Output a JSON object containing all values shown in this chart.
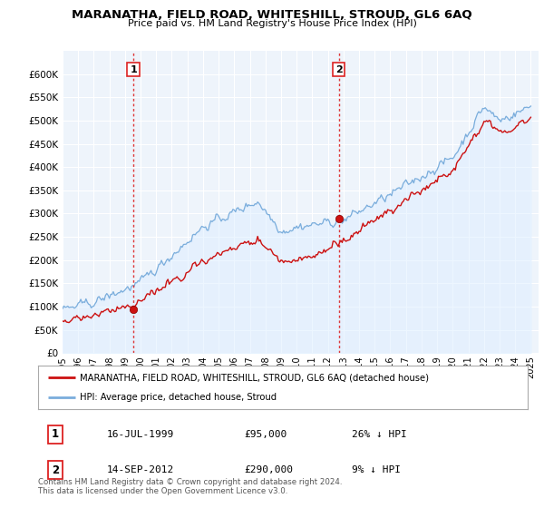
{
  "title": "MARANATHA, FIELD ROAD, WHITESHILL, STROUD, GL6 6AQ",
  "subtitle": "Price paid vs. HM Land Registry's House Price Index (HPI)",
  "ylabel_ticks": [
    "£0",
    "£50K",
    "£100K",
    "£150K",
    "£200K",
    "£250K",
    "£300K",
    "£350K",
    "£400K",
    "£450K",
    "£500K",
    "£550K",
    "£600K"
  ],
  "ytick_vals": [
    0,
    50000,
    100000,
    150000,
    200000,
    250000,
    300000,
    350000,
    400000,
    450000,
    500000,
    550000,
    600000
  ],
  "ylim": [
    0,
    650000
  ],
  "xlim_start": 1995.0,
  "xlim_end": 2025.5,
  "sale1_x": 1999.54,
  "sale1_y": 95000,
  "sale1_label": "1",
  "sale1_date": "16-JUL-1999",
  "sale1_price": "£95,000",
  "sale1_hpi": "26% ↓ HPI",
  "sale2_x": 2012.71,
  "sale2_y": 290000,
  "sale2_label": "2",
  "sale2_date": "14-SEP-2012",
  "sale2_price": "£290,000",
  "sale2_hpi": "9% ↓ HPI",
  "hpi_color": "#7aaddc",
  "hpi_fill_color": "#ddeeff",
  "sale_color": "#cc1111",
  "vline_color": "#dd2222",
  "grid_color": "#cccccc",
  "bg_color": "#ffffff",
  "chart_bg": "#eef4fb",
  "legend_sale_label": "MARANATHA, FIELD ROAD, WHITESHILL, STROUD, GL6 6AQ (detached house)",
  "legend_hpi_label": "HPI: Average price, detached house, Stroud",
  "footer": "Contains HM Land Registry data © Crown copyright and database right 2024.\nThis data is licensed under the Open Government Licence v3.0.",
  "xtick_years": [
    1995,
    1996,
    1997,
    1998,
    1999,
    2000,
    2001,
    2002,
    2003,
    2004,
    2005,
    2006,
    2007,
    2008,
    2009,
    2010,
    2011,
    2012,
    2013,
    2014,
    2015,
    2016,
    2017,
    2018,
    2019,
    2020,
    2021,
    2022,
    2023,
    2024,
    2025
  ]
}
